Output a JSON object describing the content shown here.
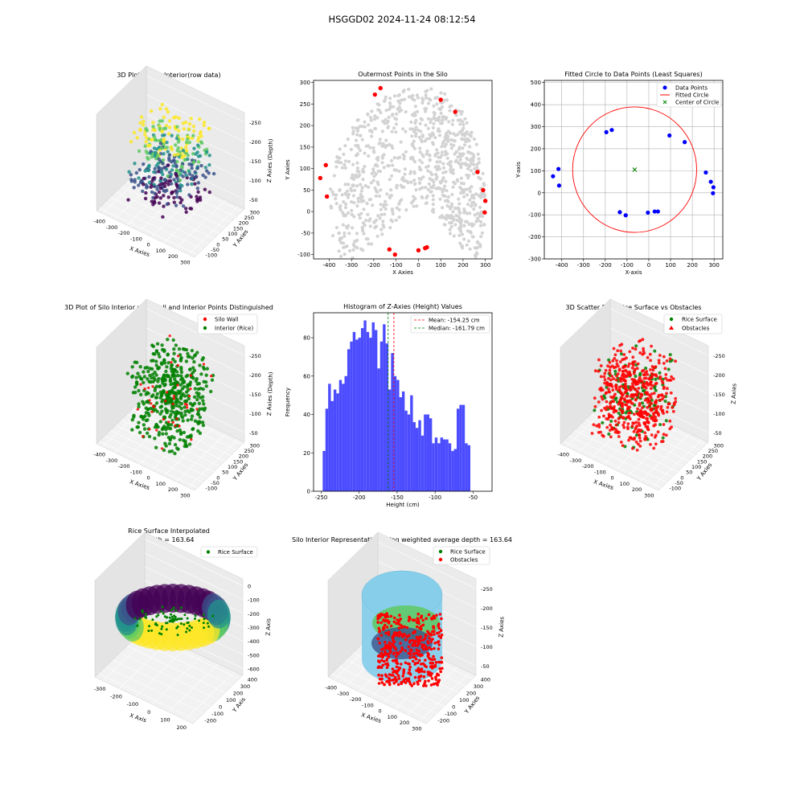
{
  "figure_title": "HSGGD02 2024-11-24 08:12:54",
  "colors": {
    "gray_points": "#d3d3d3",
    "red": "#ff0000",
    "blue": "#0000ff",
    "green": "#008000",
    "hist_bar": "#4c4cff",
    "mean_line": "#ff0000",
    "median_line": "#008000",
    "wall_blue": "#87ceeb",
    "viridis": [
      "#440154",
      "#3b528b",
      "#21918c",
      "#5ec962",
      "#fde725"
    ]
  },
  "chart_data": [
    {
      "type": "scatter3d",
      "title": "3D Plot of Silo Interior(row data)",
      "xlabel": "X Axies",
      "ylabel": "Y Axies",
      "zlabel": "Z Axies (Depth)",
      "xticks": [
        "-400",
        "-300",
        "-200",
        "-100",
        "0",
        "100",
        "200",
        "300"
      ],
      "yticks": [
        "-100",
        "-50",
        "0",
        "50",
        "100",
        "150",
        "200",
        "250",
        "300"
      ],
      "zticks": [
        "-50",
        "-100",
        "-150",
        "-200",
        "-250"
      ],
      "xlim": [
        -450,
        300
      ],
      "ylim": [
        -100,
        300
      ],
      "zlim": [
        -260,
        -30
      ],
      "colormap": "viridis"
    },
    {
      "type": "scatter",
      "title": "Outermost Points in the Silo",
      "xlabel": "X Axies",
      "ylabel": "Y Axies",
      "xlim": [
        -470,
        330
      ],
      "ylim": [
        -110,
        305
      ],
      "xticks": [
        -400,
        -300,
        -200,
        -100,
        0,
        100,
        200,
        300
      ],
      "yticks": [
        -100,
        -50,
        0,
        50,
        100,
        150,
        200,
        250,
        300
      ],
      "series": [
        {
          "role": "all_points",
          "color": "#d3d3d3"
        },
        {
          "role": "outermost",
          "color": "#ff0000",
          "points": [
            [
              -440,
              78
            ],
            [
              -415,
              108
            ],
            [
              -410,
              35
            ],
            [
              -195,
              272
            ],
            [
              -170,
              287
            ],
            [
              100,
              260
            ],
            [
              165,
              232
            ],
            [
              265,
              92
            ],
            [
              290,
              50
            ],
            [
              300,
              25
            ],
            [
              297,
              -2
            ],
            [
              -130,
              -88
            ],
            [
              -105,
              -100
            ],
            [
              0,
              -90
            ],
            [
              30,
              -85
            ],
            [
              38,
              -83
            ]
          ]
        }
      ]
    },
    {
      "type": "scatter",
      "title": "Fitted Circle to Data Points (Least Squares)",
      "xlabel": "X-axis",
      "ylabel": "Y-axis",
      "xlim": [
        -480,
        340
      ],
      "ylim": [
        -300,
        510
      ],
      "xticks": [
        -400,
        -300,
        -200,
        -100,
        0,
        100,
        200,
        300
      ],
      "yticks": [
        -300,
        -200,
        -100,
        0,
        100,
        200,
        300,
        400,
        500
      ],
      "grid": true,
      "legend": "top-right",
      "legend_entries": [
        "Data Points",
        "Fitted Circle",
        "Center of Circle"
      ],
      "data_points": [
        [
          -440,
          75
        ],
        [
          -415,
          108
        ],
        [
          -412,
          33
        ],
        [
          -195,
          275
        ],
        [
          -170,
          285
        ],
        [
          95,
          260
        ],
        [
          165,
          230
        ],
        [
          262,
          92
        ],
        [
          285,
          50
        ],
        [
          297,
          25
        ],
        [
          295,
          -2
        ],
        [
          -133,
          -88
        ],
        [
          -106,
          -102
        ],
        [
          -4,
          -90
        ],
        [
          27,
          -85
        ],
        [
          42,
          -85
        ]
      ],
      "circle": {
        "cx": -65,
        "cy": 105,
        "r": 285
      },
      "center": [
        -65,
        105
      ]
    },
    {
      "type": "scatter3d",
      "title": "3D Plot of Silo Interior with Wall and Interior Points Distinguished",
      "xlabel": "X Axies",
      "ylabel": "Y Axies",
      "zlabel": "Z Axies (Depth)",
      "xticks": [
        "-400",
        "-300",
        "-200",
        "-100",
        "0",
        "100",
        "200",
        "300"
      ],
      "yticks": [
        "-100",
        "-50",
        "0",
        "50",
        "100",
        "150",
        "200",
        "250",
        "300"
      ],
      "zticks": [
        "-50",
        "-100",
        "-150",
        "-200",
        "-250"
      ],
      "legend": "top-right",
      "legend_entries": [
        {
          "label": "Silo Wall",
          "color": "#ff0000"
        },
        {
          "label": "Interior (Rice)",
          "color": "#008000"
        }
      ]
    },
    {
      "type": "bar",
      "title": "Histogram of Z-Axies (Height) Values",
      "xlabel": "Height (cm)",
      "ylabel": "Frequency",
      "xlim": [
        -260,
        -25
      ],
      "ylim": [
        0,
        93
      ],
      "xticks": [
        -250,
        -200,
        -150,
        -100,
        -50
      ],
      "yticks": [
        0,
        20,
        40,
        60,
        80
      ],
      "bin_start": -248,
      "bin_width": 3.6,
      "values": [
        21,
        43,
        56,
        47,
        53,
        51,
        58,
        56,
        60,
        74,
        78,
        83,
        79,
        80,
        85,
        89,
        83,
        80,
        88,
        84,
        64,
        78,
        87,
        77,
        53,
        72,
        60,
        58,
        49,
        52,
        42,
        40,
        50,
        36,
        33,
        37,
        29,
        40,
        40,
        38,
        25,
        28,
        25,
        28,
        27,
        27,
        25,
        21,
        22,
        43,
        45,
        45,
        25,
        24
      ],
      "mean": -154.25,
      "median": -161.79,
      "legend": "top-right",
      "legend_entries": [
        "Mean: -154.25 cm",
        "Median: -161.79 cm"
      ]
    },
    {
      "type": "scatter3d",
      "title": "3D Scatter Plot: Rice Surface vs Obstacles",
      "xlabel": "X Axies",
      "ylabel": "Y Axies",
      "zlabel": "Z Axies",
      "xticks": [
        "-400",
        "-300",
        "-200",
        "-100",
        "0",
        "100",
        "200",
        "300"
      ],
      "yticks": [
        "-100",
        "-50",
        "0",
        "50",
        "100",
        "150",
        "200",
        "250",
        "300"
      ],
      "zticks": [
        "-50",
        "-100",
        "-150",
        "-200",
        "-250"
      ],
      "legend": "top-right",
      "legend_entries": [
        {
          "label": "Rice Surface",
          "color": "#008000"
        },
        {
          "label": "Obstacles",
          "color": "#ff0000"
        }
      ]
    },
    {
      "type": "surface3d",
      "title": "Rice Surface Interpolated\ndepth = 163.64",
      "title_lines": [
        "Rice Surface Interpolated",
        "depth = 163.64"
      ],
      "xlabel": "X Axis",
      "ylabel": "Y Axis",
      "zlabel": "Z Axis",
      "xticks": [
        "-300",
        "-200",
        "-100",
        "0",
        "100",
        "200"
      ],
      "yticks": [
        "-200",
        "-100",
        "0",
        "100",
        "200",
        "300",
        "400"
      ],
      "zticks": [
        "0",
        "-100",
        "-200",
        "-300",
        "-400",
        "-500",
        "-600"
      ],
      "legend": "top-right",
      "legend_entries": [
        {
          "label": "Rice Surface",
          "color": "#008000"
        }
      ]
    },
    {
      "type": "scatter3d",
      "title": "Silo Interior Representation using weighted average depth = 163.64",
      "xlabel": "X Axies",
      "ylabel": "Y Axies",
      "zlabel": "Z Axies",
      "xticks": [
        "-400",
        "-300",
        "-200",
        "-100",
        "0",
        "100",
        "200",
        "300"
      ],
      "yticks": [
        "-200",
        "-100",
        "0",
        "100",
        "200",
        "300",
        "400"
      ],
      "zticks": [
        "-50",
        "-100",
        "-150",
        "-200",
        "-250"
      ],
      "legend": "top-left",
      "legend_entries": [
        {
          "label": "Rice Surface",
          "color": "#008000"
        },
        {
          "label": "Obstacles",
          "color": "#ff0000"
        }
      ]
    }
  ]
}
